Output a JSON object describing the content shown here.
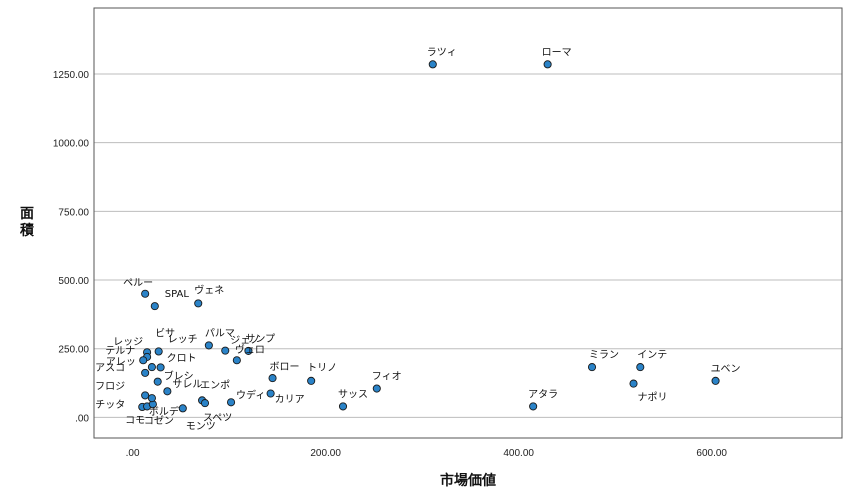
{
  "chart_data": {
    "type": "scatter",
    "xlabel": "市場価値",
    "ylabel": "面積",
    "xlim": [
      -40,
      735
    ],
    "ylim": [
      -75,
      1490
    ],
    "xticks": [
      ".00",
      "200.00",
      "400.00",
      "600.00"
    ],
    "xtick_values": [
      0,
      200,
      400,
      600
    ],
    "yticks": [
      ".00",
      "250.00",
      "500.00",
      "750.00",
      "1000.00",
      "1250.00"
    ],
    "ytick_values": [
      0,
      250,
      500,
      750,
      1000,
      1250
    ],
    "grid": "horizontal",
    "point_color": "#2a83c8",
    "points": [
      {
        "label": "ペルー",
        "x": 13,
        "y": 450
      },
      {
        "label": "SPAL",
        "x": 23,
        "y": 405
      },
      {
        "label": "ヴェネ",
        "x": 68,
        "y": 415
      },
      {
        "label": "ビサ",
        "x": 15,
        "y": 237
      },
      {
        "label": "レッジ",
        "x": 15,
        "y": 220
      },
      {
        "label": "レッチ",
        "x": 27,
        "y": 240
      },
      {
        "label": "パルマ",
        "x": 79,
        "y": 262
      },
      {
        "label": "サンプ",
        "x": 120,
        "y": 242
      },
      {
        "label": "テルナ",
        "x": 11,
        "y": 208
      },
      {
        "label": "アレッ",
        "x": 20,
        "y": 183
      },
      {
        "label": "クロト",
        "x": 29,
        "y": 182
      },
      {
        "label": "ジェノ",
        "x": 96,
        "y": 243
      },
      {
        "label": "ヴェロ",
        "x": 108,
        "y": 208
      },
      {
        "label": "ボロー",
        "x": 145,
        "y": 143
      },
      {
        "label": "トリノ",
        "x": 185,
        "y": 133
      },
      {
        "label": "アスコ",
        "x": 13,
        "y": 162
      },
      {
        "label": "ブレシ",
        "x": 26,
        "y": 130
      },
      {
        "label": "フロジ",
        "x": 13,
        "y": 80
      },
      {
        "label": "サレル",
        "x": 36,
        "y": 95
      },
      {
        "label": "エンポ",
        "x": 72,
        "y": 62
      },
      {
        "label": "ウディ",
        "x": 102,
        "y": 55
      },
      {
        "label": "カリア",
        "x": 143,
        "y": 87
      },
      {
        "label": "チッタ",
        "x": 10,
        "y": 38
      },
      {
        "label": "コモ",
        "x": 15,
        "y": 40
      },
      {
        "label": "ボルデ",
        "x": 21,
        "y": 48
      },
      {
        "label": "コゼン",
        "x": 20,
        "y": 70
      },
      {
        "label": "モンツ",
        "x": 52,
        "y": 33
      },
      {
        "label": "スペツ",
        "x": 75,
        "y": 52
      },
      {
        "label": "ラツィ",
        "x": 311,
        "y": 1285
      },
      {
        "label": "ローマ",
        "x": 430,
        "y": 1285
      },
      {
        "label": "サッス",
        "x": 218,
        "y": 40
      },
      {
        "label": "フィオ",
        "x": 253,
        "y": 105
      },
      {
        "label": "アタラ",
        "x": 415,
        "y": 40
      },
      {
        "label": "ミラン",
        "x": 476,
        "y": 183
      },
      {
        "label": "インテ",
        "x": 526,
        "y": 183
      },
      {
        "label": "ナポリ",
        "x": 519,
        "y": 123
      },
      {
        "label": "ユベン",
        "x": 604,
        "y": 133
      }
    ]
  }
}
